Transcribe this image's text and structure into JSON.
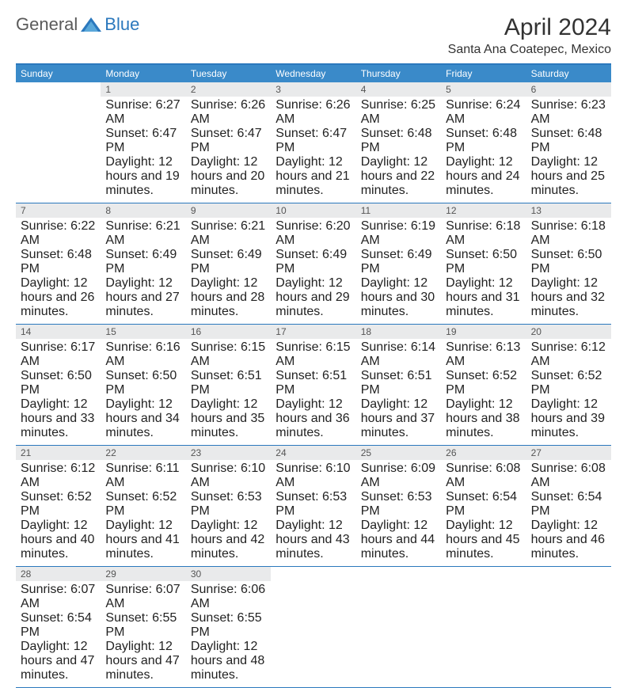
{
  "logo": {
    "gen": "General",
    "blue": "Blue"
  },
  "title": "April 2024",
  "subtitle": "Santa Ana Coatepec, Mexico",
  "colors": {
    "header_bar": "#3a8ac9",
    "week_divider": "#2b78bd",
    "daynum_bg": "#e9eaeb",
    "daynum_text": "#555555",
    "body_text": "#222222",
    "title_text": "#333333",
    "logo_gray": "#5a5a5a",
    "logo_blue": "#2b78bd",
    "page_bg": "#ffffff"
  },
  "typography": {
    "title_fontsize": 30,
    "subtitle_fontsize": 16,
    "dow_fontsize": 12,
    "daynum_fontsize": 12,
    "cell_fontsize": 11,
    "logo_fontsize": 22
  },
  "days_of_week": [
    "Sunday",
    "Monday",
    "Tuesday",
    "Wednesday",
    "Thursday",
    "Friday",
    "Saturday"
  ],
  "weeks": [
    [
      {
        "n": "",
        "lines": []
      },
      {
        "n": "1",
        "lines": [
          "Sunrise: 6:27 AM",
          "Sunset: 6:47 PM",
          "Daylight: 12 hours and 19 minutes."
        ]
      },
      {
        "n": "2",
        "lines": [
          "Sunrise: 6:26 AM",
          "Sunset: 6:47 PM",
          "Daylight: 12 hours and 20 minutes."
        ]
      },
      {
        "n": "3",
        "lines": [
          "Sunrise: 6:26 AM",
          "Sunset: 6:47 PM",
          "Daylight: 12 hours and 21 minutes."
        ]
      },
      {
        "n": "4",
        "lines": [
          "Sunrise: 6:25 AM",
          "Sunset: 6:48 PM",
          "Daylight: 12 hours and 22 minutes."
        ]
      },
      {
        "n": "5",
        "lines": [
          "Sunrise: 6:24 AM",
          "Sunset: 6:48 PM",
          "Daylight: 12 hours and 24 minutes."
        ]
      },
      {
        "n": "6",
        "lines": [
          "Sunrise: 6:23 AM",
          "Sunset: 6:48 PM",
          "Daylight: 12 hours and 25 minutes."
        ]
      }
    ],
    [
      {
        "n": "7",
        "lines": [
          "Sunrise: 6:22 AM",
          "Sunset: 6:48 PM",
          "Daylight: 12 hours and 26 minutes."
        ]
      },
      {
        "n": "8",
        "lines": [
          "Sunrise: 6:21 AM",
          "Sunset: 6:49 PM",
          "Daylight: 12 hours and 27 minutes."
        ]
      },
      {
        "n": "9",
        "lines": [
          "Sunrise: 6:21 AM",
          "Sunset: 6:49 PM",
          "Daylight: 12 hours and 28 minutes."
        ]
      },
      {
        "n": "10",
        "lines": [
          "Sunrise: 6:20 AM",
          "Sunset: 6:49 PM",
          "Daylight: 12 hours and 29 minutes."
        ]
      },
      {
        "n": "11",
        "lines": [
          "Sunrise: 6:19 AM",
          "Sunset: 6:49 PM",
          "Daylight: 12 hours and 30 minutes."
        ]
      },
      {
        "n": "12",
        "lines": [
          "Sunrise: 6:18 AM",
          "Sunset: 6:50 PM",
          "Daylight: 12 hours and 31 minutes."
        ]
      },
      {
        "n": "13",
        "lines": [
          "Sunrise: 6:18 AM",
          "Sunset: 6:50 PM",
          "Daylight: 12 hours and 32 minutes."
        ]
      }
    ],
    [
      {
        "n": "14",
        "lines": [
          "Sunrise: 6:17 AM",
          "Sunset: 6:50 PM",
          "Daylight: 12 hours and 33 minutes."
        ]
      },
      {
        "n": "15",
        "lines": [
          "Sunrise: 6:16 AM",
          "Sunset: 6:50 PM",
          "Daylight: 12 hours and 34 minutes."
        ]
      },
      {
        "n": "16",
        "lines": [
          "Sunrise: 6:15 AM",
          "Sunset: 6:51 PM",
          "Daylight: 12 hours and 35 minutes."
        ]
      },
      {
        "n": "17",
        "lines": [
          "Sunrise: 6:15 AM",
          "Sunset: 6:51 PM",
          "Daylight: 12 hours and 36 minutes."
        ]
      },
      {
        "n": "18",
        "lines": [
          "Sunrise: 6:14 AM",
          "Sunset: 6:51 PM",
          "Daylight: 12 hours and 37 minutes."
        ]
      },
      {
        "n": "19",
        "lines": [
          "Sunrise: 6:13 AM",
          "Sunset: 6:52 PM",
          "Daylight: 12 hours and 38 minutes."
        ]
      },
      {
        "n": "20",
        "lines": [
          "Sunrise: 6:12 AM",
          "Sunset: 6:52 PM",
          "Daylight: 12 hours and 39 minutes."
        ]
      }
    ],
    [
      {
        "n": "21",
        "lines": [
          "Sunrise: 6:12 AM",
          "Sunset: 6:52 PM",
          "Daylight: 12 hours and 40 minutes."
        ]
      },
      {
        "n": "22",
        "lines": [
          "Sunrise: 6:11 AM",
          "Sunset: 6:52 PM",
          "Daylight: 12 hours and 41 minutes."
        ]
      },
      {
        "n": "23",
        "lines": [
          "Sunrise: 6:10 AM",
          "Sunset: 6:53 PM",
          "Daylight: 12 hours and 42 minutes."
        ]
      },
      {
        "n": "24",
        "lines": [
          "Sunrise: 6:10 AM",
          "Sunset: 6:53 PM",
          "Daylight: 12 hours and 43 minutes."
        ]
      },
      {
        "n": "25",
        "lines": [
          "Sunrise: 6:09 AM",
          "Sunset: 6:53 PM",
          "Daylight: 12 hours and 44 minutes."
        ]
      },
      {
        "n": "26",
        "lines": [
          "Sunrise: 6:08 AM",
          "Sunset: 6:54 PM",
          "Daylight: 12 hours and 45 minutes."
        ]
      },
      {
        "n": "27",
        "lines": [
          "Sunrise: 6:08 AM",
          "Sunset: 6:54 PM",
          "Daylight: 12 hours and 46 minutes."
        ]
      }
    ],
    [
      {
        "n": "28",
        "lines": [
          "Sunrise: 6:07 AM",
          "Sunset: 6:54 PM",
          "Daylight: 12 hours and 47 minutes."
        ]
      },
      {
        "n": "29",
        "lines": [
          "Sunrise: 6:07 AM",
          "Sunset: 6:55 PM",
          "Daylight: 12 hours and 47 minutes."
        ]
      },
      {
        "n": "30",
        "lines": [
          "Sunrise: 6:06 AM",
          "Sunset: 6:55 PM",
          "Daylight: 12 hours and 48 minutes."
        ]
      },
      {
        "n": "",
        "lines": []
      },
      {
        "n": "",
        "lines": []
      },
      {
        "n": "",
        "lines": []
      },
      {
        "n": "",
        "lines": []
      }
    ]
  ]
}
